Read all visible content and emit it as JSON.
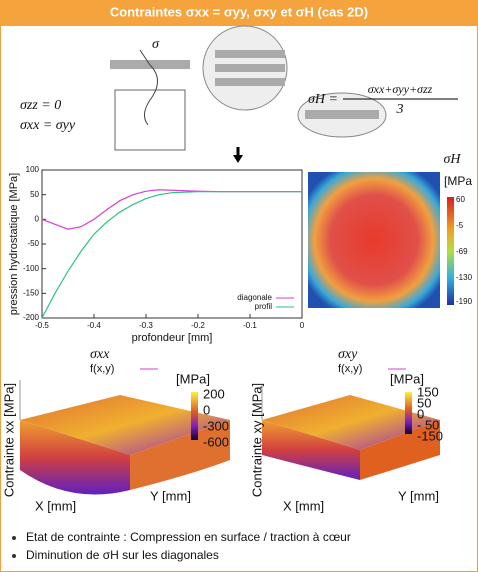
{
  "header": {
    "title": "Contraintes σxx = σyy, σxy et σH (cas 2D)"
  },
  "schematic": {
    "sigma": "σ",
    "szz": "σzz = 0",
    "sxx": "σxx = σyy",
    "sh_lhs": "σH =",
    "sh_num": "σxx+σyy+σzz",
    "sh_den": "3"
  },
  "chart_data": {
    "type": "line",
    "xlabel": "profondeur [mm]",
    "ylabel": "pression hydrostatique [MPa]",
    "x": [
      -0.5,
      -0.475,
      -0.45,
      -0.425,
      -0.4,
      -0.375,
      -0.35,
      -0.325,
      -0.3,
      -0.275,
      -0.25,
      -0.2,
      -0.15,
      -0.1,
      -0.05,
      0
    ],
    "series": [
      {
        "name": "diagonale",
        "color": "#d63fd6",
        "values": [
          0,
          -10,
          -20,
          -15,
          0,
          20,
          38,
          50,
          57,
          60,
          59,
          57,
          56,
          56,
          56,
          56
        ]
      },
      {
        "name": "profil",
        "color": "#2ec27e",
        "values": [
          -200,
          -150,
          -105,
          -65,
          -30,
          -5,
          15,
          30,
          42,
          50,
          54,
          56,
          56,
          56,
          56,
          56
        ]
      }
    ],
    "xlim": [
      -0.5,
      0
    ],
    "xticks": [
      -0.5,
      -0.4,
      -0.3,
      -0.2,
      -0.1,
      0
    ],
    "ylim": [
      -200,
      100
    ],
    "yticks": [
      100,
      50,
      0,
      -50,
      -100,
      -150,
      -200
    ],
    "legend": "lower right"
  },
  "heatmap": {
    "title": "σH",
    "unit": "[MPa",
    "ticks": [
      "60",
      "-5",
      "-69",
      "-130",
      "-190"
    ]
  },
  "plot_xx": {
    "title": "σxx",
    "legend": "f(x,y)",
    "unit": "[MPa]",
    "ticks": [
      "200",
      "0",
      "-300",
      "-600"
    ],
    "zlabel": "Contrainte xx [MPa]",
    "xlabel": "X [mm]",
    "ylabel": "Y [mm]"
  },
  "plot_xy": {
    "title": "σxy",
    "legend": "f(x,y)",
    "unit": "[MPa]",
    "ticks": [
      "150",
      "50",
      "0",
      "- 50",
      "-150"
    ],
    "zlabel": "Contrainte xy [MPa]",
    "xlabel": "X [mm]",
    "ylabel": "Y [mm]"
  },
  "bullets": [
    "Etat de contrainte : Compression en surface / traction à cœur",
    "Diminution de σH sur les diagonales"
  ]
}
